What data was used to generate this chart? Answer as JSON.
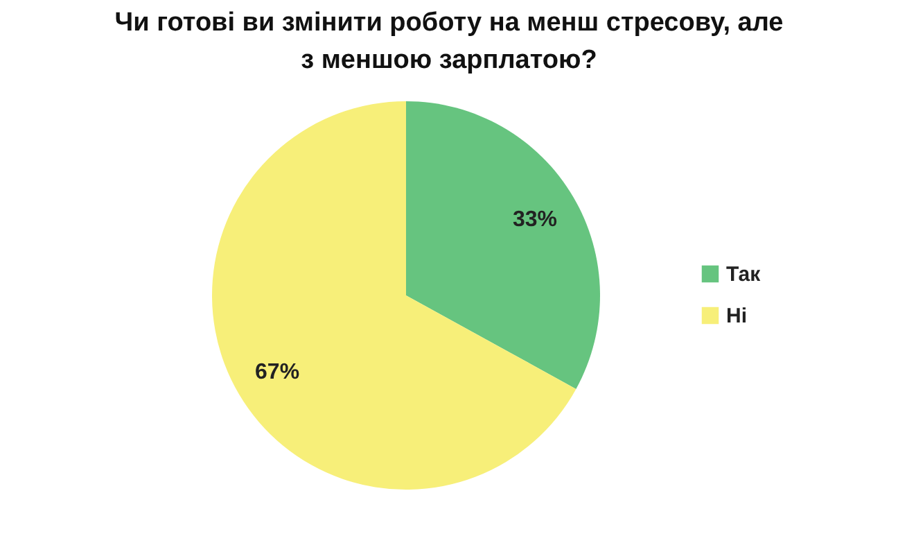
{
  "chart_data": {
    "type": "pie",
    "title": "Чи готові ви змінити роботу на менш стресову, але з меншою зарплатою?",
    "categories": [
      "Так",
      "Ні"
    ],
    "values": [
      33,
      67
    ],
    "colors": [
      "#66c47f",
      "#f7ef79"
    ],
    "value_labels": [
      "33%",
      "67%"
    ],
    "legend": "right"
  }
}
